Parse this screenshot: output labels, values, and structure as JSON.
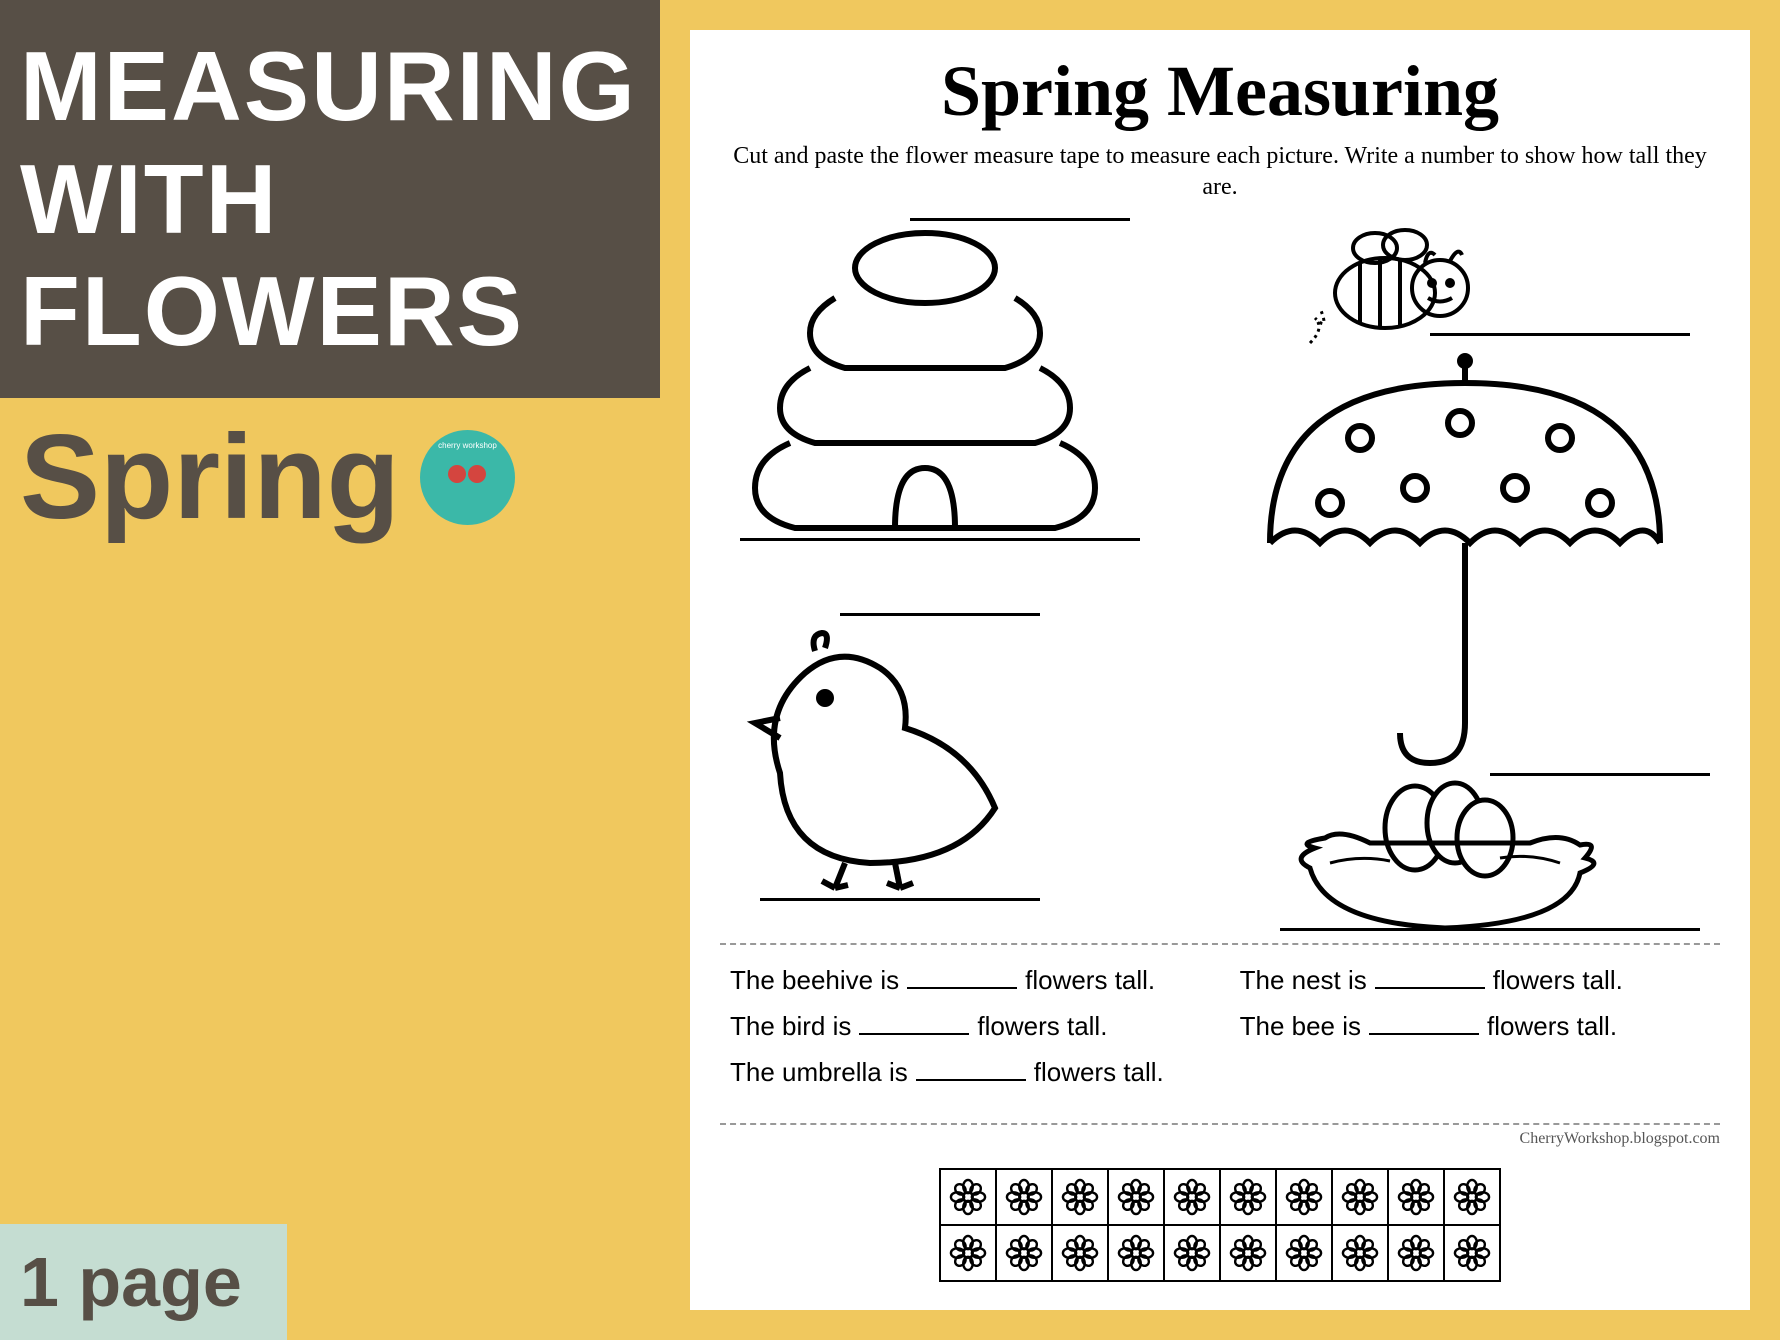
{
  "left": {
    "title_lines": [
      "MEASURING",
      "WITH",
      "FLOWERS"
    ],
    "subtitle": "Spring",
    "logo_text": "cherry workshop",
    "page_count": "1 page"
  },
  "colors": {
    "background": "#f0c85e",
    "title_block_bg": "#574f46",
    "title_text": "#ffffff",
    "subtitle_text": "#574f46",
    "logo_bg": "#3bb8a8",
    "cherry": "#d4453f",
    "page_badge_bg": "#c5ddd2",
    "worksheet_bg": "#ffffff"
  },
  "worksheet": {
    "title": "Spring Measuring",
    "instructions": "Cut and paste the flower measure tape to measure each picture. Write a number to show how tall they are.",
    "items": [
      "beehive",
      "bee",
      "umbrella",
      "bird",
      "nest"
    ],
    "sentences": [
      {
        "subject": "The beehive is",
        "suffix": "flowers tall."
      },
      {
        "subject": "The nest is",
        "suffix": "flowers tall."
      },
      {
        "subject": "The bird is",
        "suffix": "flowers tall."
      },
      {
        "subject": "The bee is",
        "suffix": "flowers tall."
      },
      {
        "subject": "The umbrella is",
        "suffix": "flowers tall."
      }
    ],
    "credit": "CherryWorkshop.blogspot.com",
    "tape_flowers_per_row": 10,
    "tape_rows": 2
  }
}
